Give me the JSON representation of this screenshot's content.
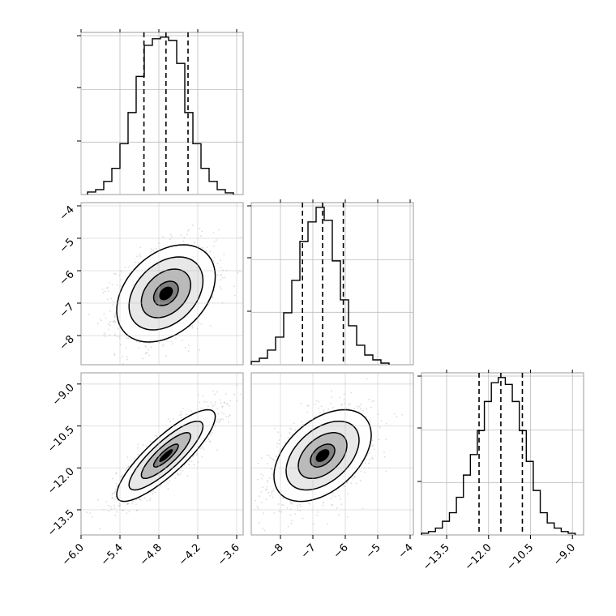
{
  "chart_data": {
    "type": "corner",
    "parameters": [
      {
        "id": "p0",
        "range": [
          -6.0,
          -3.5
        ],
        "ticks": [
          -6.0,
          -5.4,
          -4.8,
          -4.2,
          -3.6
        ],
        "tick_labels": [
          "−6.0",
          "−5.4",
          "−4.8",
          "−4.2",
          "−3.6"
        ],
        "quantiles": [
          -5.03,
          -4.69,
          -4.35
        ],
        "hist_edges": [
          -5.9,
          -5.775,
          -5.65,
          -5.525,
          -5.4,
          -5.275,
          -5.15,
          -5.025,
          -4.9,
          -4.775,
          -4.65,
          -4.525,
          -4.4,
          -4.275,
          -4.15,
          -4.025,
          -3.9,
          -3.775,
          -3.65
        ],
        "hist_counts": [
          1.5,
          3,
          8,
          16,
          31,
          50,
          72,
          91,
          95,
          96,
          94,
          80,
          50,
          31,
          16,
          8,
          3,
          1
        ]
      },
      {
        "id": "p1",
        "range": [
          -8.9,
          -3.9
        ],
        "ticks": [
          -8,
          -7,
          -6,
          -5,
          -4
        ],
        "tick_labels": [
          "−8",
          "−7",
          "−6",
          "−5",
          "−4"
        ],
        "quantiles": [
          -7.32,
          -6.7,
          -6.06
        ],
        "hist_edges": [
          -8.9,
          -8.65,
          -8.4,
          -8.15,
          -7.9,
          -7.65,
          -7.4,
          -7.15,
          -6.9,
          -6.65,
          -6.4,
          -6.15,
          -5.9,
          -5.65,
          -5.4,
          -5.15,
          -4.9,
          -4.65
        ],
        "hist_counts": [
          2,
          4,
          9,
          17,
          32,
          52,
          76,
          88,
          97,
          89,
          64,
          40,
          24,
          12,
          6,
          3,
          1
        ]
      },
      {
        "id": "p2",
        "range": [
          -14.4,
          -8.6
        ],
        "ticks": [
          -13.5,
          -12.0,
          -10.5,
          -9.0
        ],
        "tick_labels": [
          "−13.5",
          "−12.0",
          "−10.5",
          "−9.0"
        ],
        "quantiles": [
          -12.34,
          -11.56,
          -10.79
        ],
        "hist_edges": [
          -14.4,
          -14.15,
          -13.9,
          -13.65,
          -13.4,
          -13.15,
          -12.9,
          -12.65,
          -12.4,
          -12.15,
          -11.9,
          -11.65,
          -11.4,
          -11.15,
          -10.9,
          -10.65,
          -10.4,
          -10.15,
          -9.9,
          -9.65,
          -9.4,
          -9.15,
          -8.9
        ],
        "hist_counts": [
          1,
          2,
          4,
          8,
          13,
          22,
          35,
          47,
          61,
          78,
          89,
          92,
          88,
          78,
          61,
          43,
          26,
          13,
          7,
          4,
          2,
          1
        ]
      }
    ],
    "pairs": [
      {
        "x": "p0",
        "y": "p1",
        "center": [
          -4.69,
          -6.7
        ],
        "sigma": [
          0.38,
          0.75
        ],
        "rho": 0.35
      },
      {
        "x": "p0",
        "y": "p2",
        "center": [
          -4.69,
          -11.56
        ],
        "sigma": [
          0.38,
          0.82
        ],
        "rho": 0.85
      },
      {
        "x": "p1",
        "y": "p2",
        "center": [
          -6.7,
          -11.56
        ],
        "sigma": [
          0.75,
          0.82
        ],
        "rho": 0.45
      }
    ],
    "contour_levels_sigma": [
      0.5,
      1.0,
      1.5,
      2.0
    ],
    "scatter_color": "#999999",
    "density_color": "#000000",
    "grid": true
  }
}
